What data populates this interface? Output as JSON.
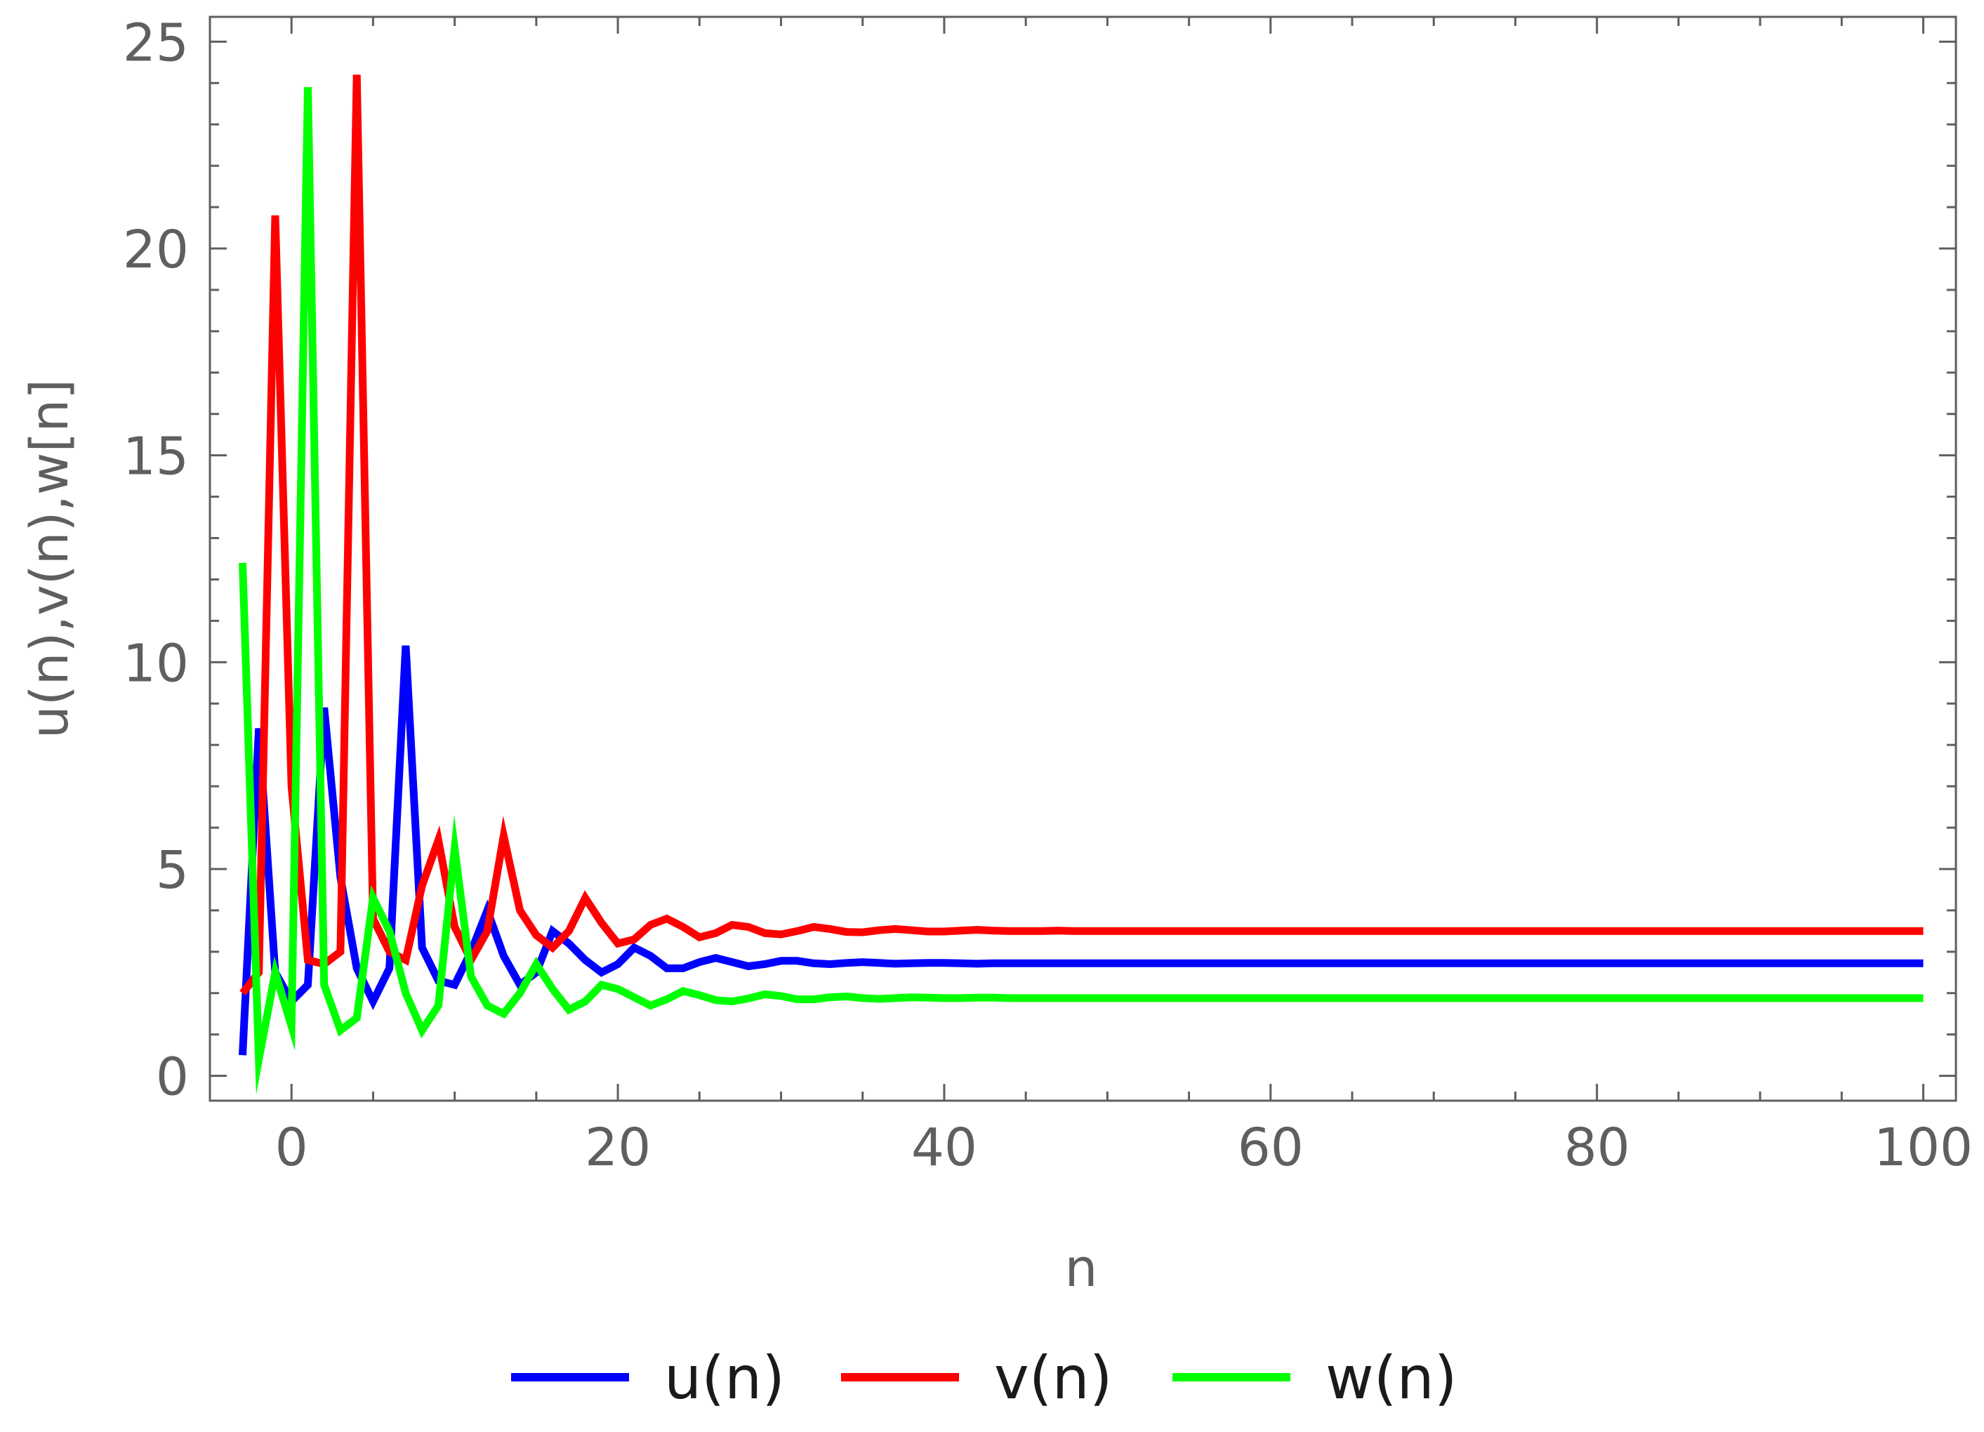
{
  "chart_data": {
    "type": "line",
    "title": "",
    "xlabel": "n",
    "ylabel": "u(n),v(n),w[n]",
    "xlim": [
      -5,
      102
    ],
    "ylim": [
      -0.6,
      25.6
    ],
    "grid": false,
    "frame": true,
    "x_ticks": [
      0,
      20,
      40,
      60,
      80,
      100
    ],
    "x_tick_labels": [
      "0",
      "20",
      "40",
      "60",
      "80",
      "100"
    ],
    "y_ticks": [
      0,
      5,
      10,
      15,
      20,
      25
    ],
    "y_tick_labels": [
      "0",
      "5",
      "10",
      "15",
      "20",
      "25"
    ],
    "x_minor_step": 5,
    "y_minor_step": 1,
    "legend_position": "bottom-center",
    "x": [
      -3,
      -2,
      -1,
      0,
      1,
      2,
      3,
      4,
      5,
      6,
      7,
      8,
      9,
      10,
      11,
      12,
      13,
      14,
      15,
      16,
      17,
      18,
      19,
      20,
      21,
      22,
      23,
      24,
      25,
      26,
      27,
      28,
      29,
      30,
      31,
      32,
      33,
      34,
      35,
      36,
      37,
      38,
      39,
      40,
      41,
      42,
      43,
      44,
      45,
      46,
      47,
      48,
      49,
      50,
      55,
      60,
      65,
      70,
      75,
      80,
      85,
      90,
      95,
      100
    ],
    "series": [
      {
        "name": "u(n)",
        "color": "#0000ff",
        "values": [
          0.5,
          8.4,
          2.5,
          1.8,
          2.2,
          8.9,
          4.8,
          2.6,
          1.8,
          2.6,
          10.4,
          3.1,
          2.3,
          2.2,
          3.0,
          4.0,
          2.9,
          2.2,
          2.5,
          3.5,
          3.2,
          2.8,
          2.5,
          2.7,
          3.1,
          2.9,
          2.6,
          2.6,
          2.75,
          2.85,
          2.75,
          2.65,
          2.7,
          2.78,
          2.78,
          2.72,
          2.7,
          2.73,
          2.75,
          2.73,
          2.71,
          2.72,
          2.73,
          2.73,
          2.72,
          2.71,
          2.72,
          2.72,
          2.72,
          2.72,
          2.72,
          2.72,
          2.72,
          2.72,
          2.72,
          2.72,
          2.72,
          2.72,
          2.72,
          2.72,
          2.72,
          2.72,
          2.72,
          2.72
        ]
      },
      {
        "name": "v(n)",
        "color": "#ff0000",
        "values": [
          2.0,
          2.5,
          20.8,
          7.0,
          2.8,
          2.7,
          3.0,
          24.2,
          3.8,
          3.0,
          2.8,
          4.6,
          5.7,
          3.6,
          2.8,
          3.5,
          5.8,
          4.0,
          3.4,
          3.1,
          3.5,
          4.3,
          3.7,
          3.2,
          3.3,
          3.65,
          3.8,
          3.6,
          3.35,
          3.45,
          3.65,
          3.6,
          3.45,
          3.42,
          3.5,
          3.6,
          3.55,
          3.48,
          3.47,
          3.52,
          3.55,
          3.52,
          3.49,
          3.49,
          3.51,
          3.53,
          3.51,
          3.5,
          3.5,
          3.5,
          3.51,
          3.5,
          3.5,
          3.5,
          3.5,
          3.5,
          3.5,
          3.5,
          3.5,
          3.5,
          3.5,
          3.5,
          3.5,
          3.5
        ]
      },
      {
        "name": "w(n)",
        "color": "#00ff00",
        "values": [
          12.4,
          0.4,
          2.5,
          1.2,
          23.9,
          2.2,
          1.1,
          1.4,
          4.3,
          3.5,
          2.0,
          1.1,
          1.7,
          5.5,
          2.4,
          1.7,
          1.5,
          2.0,
          2.7,
          2.1,
          1.6,
          1.8,
          2.2,
          2.1,
          1.9,
          1.7,
          1.85,
          2.05,
          1.95,
          1.83,
          1.8,
          1.87,
          1.97,
          1.93,
          1.85,
          1.85,
          1.9,
          1.92,
          1.88,
          1.86,
          1.88,
          1.9,
          1.89,
          1.88,
          1.88,
          1.89,
          1.89,
          1.88,
          1.88,
          1.88,
          1.88,
          1.88,
          1.88,
          1.88,
          1.88,
          1.88,
          1.88,
          1.88,
          1.88,
          1.88,
          1.88,
          1.88,
          1.88,
          1.88
        ]
      }
    ]
  }
}
